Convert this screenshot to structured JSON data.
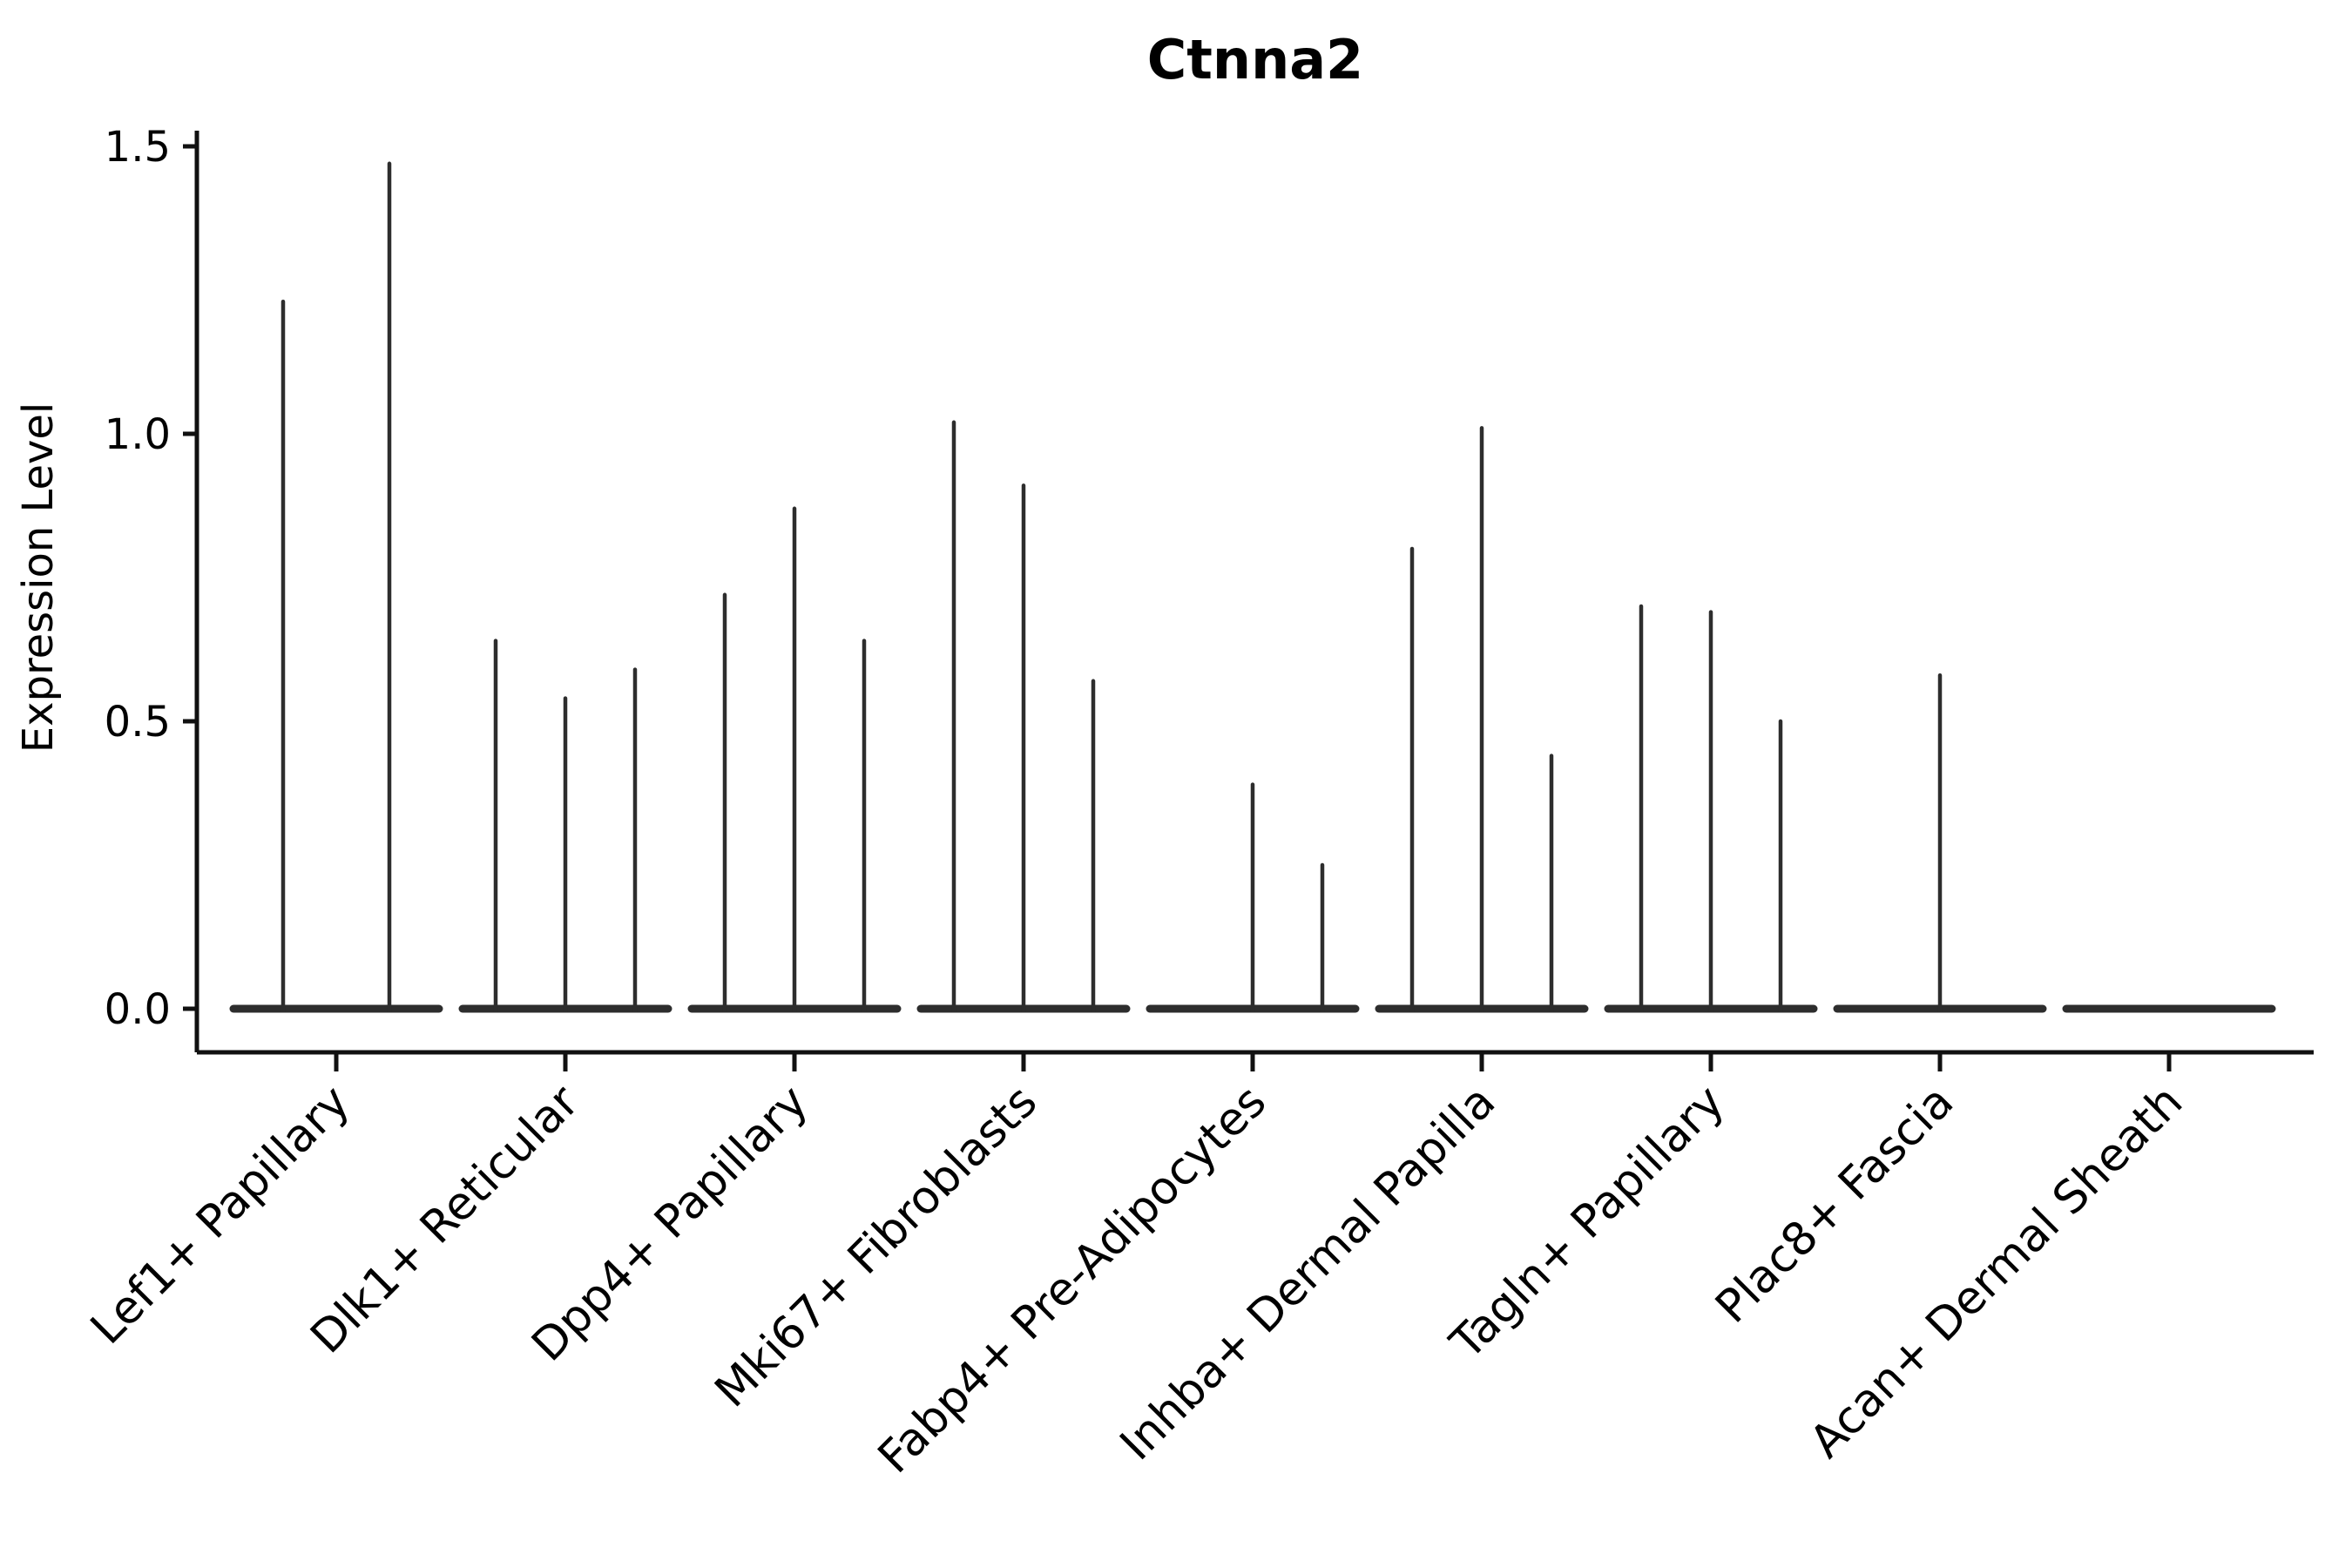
{
  "chart_data": {
    "type": "violin",
    "title": "Ctnna2",
    "xlabel": "",
    "ylabel": "Expression Level",
    "ylim": [
      0,
      1.5
    ],
    "yticks": [
      "0.0",
      "0.5",
      "1.0",
      "1.5"
    ],
    "ytick_values": [
      0.0,
      0.5,
      1.0,
      1.5
    ],
    "grid": false,
    "legend": "none",
    "x_tick_rotation": -45,
    "line_color": "#2d2d2d",
    "axis_color": "#111111",
    "categories": [
      "Lef1+ Papillary",
      "Dlk1+ Reticular",
      "Dpp4+ Papillary",
      "Mki67+ Fibroblasts",
      "Fabp4+ Pre-Adipocytes",
      "Inhba+ Dermal Papilla",
      "Tagln+ Papillary",
      "Plac8+ Fascia",
      "Acan+ Dermal Sheath"
    ],
    "series": [
      {
        "category": "Lef1+ Papillary",
        "violins": [
          {
            "dx": -61,
            "peak": 1.23
          },
          {
            "dx": 61,
            "peak": 1.47
          }
        ]
      },
      {
        "category": "Dlk1+ Reticular",
        "violins": [
          {
            "dx": -80,
            "peak": 0.64
          },
          {
            "dx": 0,
            "peak": 0.54
          },
          {
            "dx": 80,
            "peak": 0.59
          }
        ]
      },
      {
        "category": "Dpp4+ Papillary",
        "violins": [
          {
            "dx": -80,
            "peak": 0.72
          },
          {
            "dx": 0,
            "peak": 0.87
          },
          {
            "dx": 80,
            "peak": 0.64
          }
        ]
      },
      {
        "category": "Mki67+ Fibroblasts",
        "violins": [
          {
            "dx": -80,
            "peak": 1.02
          },
          {
            "dx": 0,
            "peak": 0.91
          },
          {
            "dx": 80,
            "peak": 0.57
          }
        ]
      },
      {
        "category": "Fabp4+ Pre-Adipocytes",
        "violins": [
          {
            "dx": -80,
            "peak": 0.0
          },
          {
            "dx": 0,
            "peak": 0.39
          },
          {
            "dx": 80,
            "peak": 0.25
          }
        ]
      },
      {
        "category": "Inhba+ Dermal Papilla",
        "violins": [
          {
            "dx": -80,
            "peak": 0.8
          },
          {
            "dx": 0,
            "peak": 1.01
          },
          {
            "dx": 80,
            "peak": 0.44
          }
        ]
      },
      {
        "category": "Tagln+ Papillary",
        "violins": [
          {
            "dx": -80,
            "peak": 0.7
          },
          {
            "dx": 0,
            "peak": 0.69
          },
          {
            "dx": 80,
            "peak": 0.5
          }
        ]
      },
      {
        "category": "Plac8+ Fascia",
        "violins": [
          {
            "dx": 0,
            "peak": 0.58
          }
        ]
      },
      {
        "category": "Acan+ Dermal Sheath",
        "violins": []
      }
    ]
  }
}
